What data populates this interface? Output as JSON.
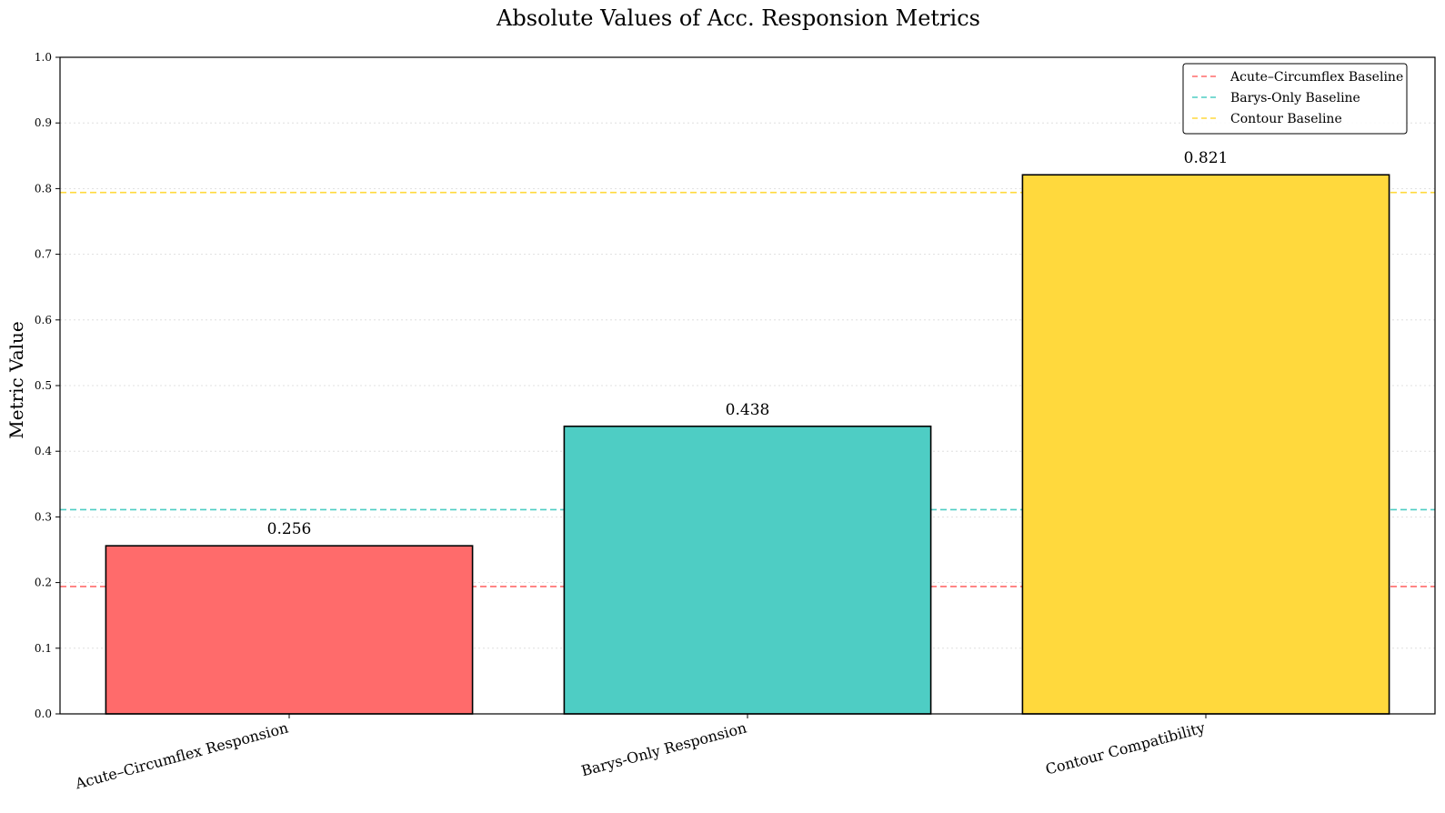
{
  "chart_data": {
    "type": "bar",
    "title": "Absolute Values of Acc. Responsion Metrics",
    "xlabel": "",
    "ylabel": "Metric Value",
    "ylim": [
      0,
      1.0
    ],
    "yticks": [
      "0.0",
      "0.1",
      "0.2",
      "0.3",
      "0.4",
      "0.5",
      "0.6",
      "0.7",
      "0.8",
      "0.9",
      "1.0"
    ],
    "grid": "y-dotted",
    "legend_position": "top-right",
    "categories": [
      "Acute–Circumflex Responsion",
      "Barys-Only Responsion",
      "Contour Compatibility"
    ],
    "values": [
      0.256,
      0.438,
      0.821
    ],
    "value_labels": [
      "0.256",
      "0.438",
      "0.821"
    ],
    "bar_colors": [
      "#ff6b6b",
      "#4ecdc4",
      "#ffd93d"
    ],
    "baselines": [
      {
        "name": "Acute–Circumflex Baseline",
        "value": 0.194,
        "color": "#ff6b6b"
      },
      {
        "name": "Barys-Only Baseline",
        "value": 0.311,
        "color": "#4ecdc4"
      },
      {
        "name": "Contour Baseline",
        "value": 0.794,
        "color": "#ffd93d"
      }
    ]
  }
}
